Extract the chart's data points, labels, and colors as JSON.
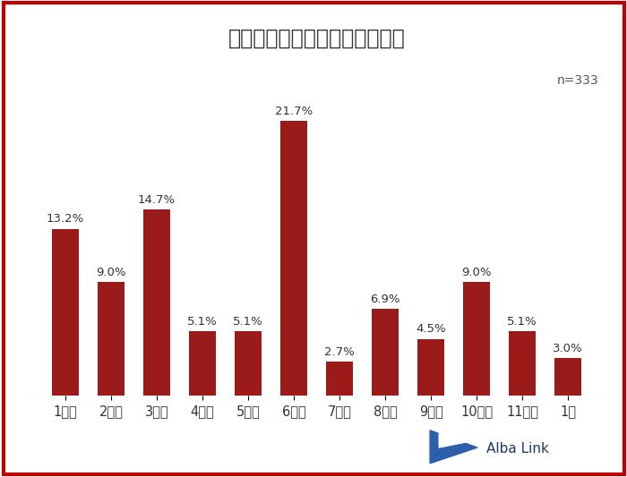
{
  "title": "入社後どれくらいで退職したか",
  "n_label": "n=333",
  "categories": [
    "1ケ月",
    "2ケ月",
    "3ケ月",
    "4ケ月",
    "5ケ月",
    "6ケ月",
    "7ケ月",
    "8ケ月",
    "9ケ月",
    "10ケ月",
    "11ケ月",
    "1年"
  ],
  "values": [
    13.2,
    9.0,
    14.7,
    5.1,
    5.1,
    21.7,
    2.7,
    6.9,
    4.5,
    9.0,
    5.1,
    3.0
  ],
  "labels": [
    "13.2%",
    "9.0%",
    "14.7%",
    "5.1%",
    "5.1%",
    "21.7%",
    "2.7%",
    "6.9%",
    "4.5%",
    "9.0%",
    "5.1%",
    "3.0%"
  ],
  "bar_color": "#9B1B1B",
  "background_color": "#FFFFFF",
  "border_color": "#BE0000",
  "title_fontsize": 17,
  "label_fontsize": 9.5,
  "tick_fontsize": 10.5,
  "ylim": [
    0,
    26
  ],
  "alba_link_color": "#1A3A6B",
  "triangle_color": "#1E5FA8"
}
